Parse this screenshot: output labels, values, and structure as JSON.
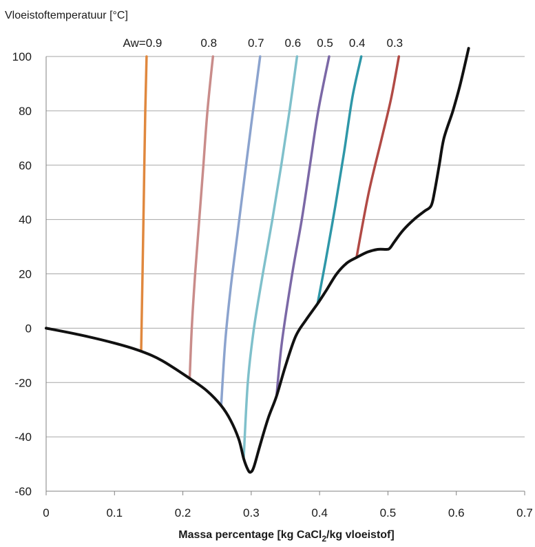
{
  "chart_data": {
    "type": "line",
    "title": "",
    "ylabel": "Vloeistoftemperatuur [°C]",
    "xlabel": {
      "prefix": "Massa percentage [kg CaCl",
      "subscript": "2",
      "suffix": "/kg vloeistof]"
    },
    "xlim": [
      0,
      0.7
    ],
    "ylim": [
      -60,
      100
    ],
    "xticks": [
      "0",
      "0.1",
      "0.2",
      "0.3",
      "0.4",
      "0.5",
      "0.6",
      "0.7"
    ],
    "yticks": [
      "100",
      "80",
      "60",
      "40",
      "20",
      "0",
      "-20",
      "-40",
      "-60"
    ],
    "xtick_values": [
      0,
      0.1,
      0.2,
      0.3,
      0.4,
      0.5,
      0.6,
      0.7
    ],
    "ytick_values": [
      100,
      80,
      60,
      40,
      20,
      0,
      -20,
      -40,
      -60
    ],
    "grid": "horizontal",
    "series": [
      {
        "name": "Aw=0.9",
        "color": "#E0883E",
        "points": [
          [
            0.139,
            -8.5
          ],
          [
            0.141,
            20
          ],
          [
            0.143,
            50
          ],
          [
            0.145,
            80
          ],
          [
            0.147,
            100
          ]
        ]
      },
      {
        "name": "0.8",
        "color": "#C98C8A",
        "points": [
          [
            0.21,
            -18.5
          ],
          [
            0.213,
            0
          ],
          [
            0.218,
            20
          ],
          [
            0.224,
            40
          ],
          [
            0.23,
            60
          ],
          [
            0.236,
            80
          ],
          [
            0.244,
            100
          ]
        ]
      },
      {
        "name": "0.7",
        "color": "#8BA3CE",
        "points": [
          [
            0.256,
            -28.5
          ],
          [
            0.262,
            -5
          ],
          [
            0.27,
            15
          ],
          [
            0.28,
            35
          ],
          [
            0.29,
            55
          ],
          [
            0.3,
            75
          ],
          [
            0.313,
            100
          ]
        ]
      },
      {
        "name": "0.6",
        "color": "#7FC0CB",
        "points": [
          [
            0.289,
            -48
          ],
          [
            0.295,
            -20
          ],
          [
            0.304,
            0
          ],
          [
            0.317,
            20
          ],
          [
            0.331,
            40
          ],
          [
            0.344,
            60
          ],
          [
            0.356,
            80
          ],
          [
            0.367,
            100
          ]
        ]
      },
      {
        "name": "0.5",
        "color": "#7B68A6",
        "points": [
          [
            0.337,
            -25
          ],
          [
            0.345,
            -5
          ],
          [
            0.36,
            20
          ],
          [
            0.374,
            40
          ],
          [
            0.386,
            60
          ],
          [
            0.398,
            80
          ],
          [
            0.414,
            100
          ]
        ]
      },
      {
        "name": "0.4",
        "color": "#2E97A8",
        "points": [
          [
            0.397,
            9
          ],
          [
            0.409,
            25
          ],
          [
            0.423,
            45
          ],
          [
            0.436,
            65
          ],
          [
            0.448,
            85
          ],
          [
            0.461,
            100
          ]
        ]
      },
      {
        "name": "0.3",
        "color": "#B14A45",
        "points": [
          [
            0.454,
            26
          ],
          [
            0.472,
            50
          ],
          [
            0.491,
            70
          ],
          [
            0.505,
            85
          ],
          [
            0.516,
            100
          ]
        ]
      },
      {
        "name": "",
        "color": "#111111",
        "points": [
          [
            0.0,
            0
          ],
          [
            0.05,
            -2.5
          ],
          [
            0.1,
            -5.5
          ],
          [
            0.139,
            -8.5
          ],
          [
            0.17,
            -12
          ],
          [
            0.21,
            -18.5
          ],
          [
            0.235,
            -23
          ],
          [
            0.256,
            -28.5
          ],
          [
            0.27,
            -34
          ],
          [
            0.282,
            -41
          ],
          [
            0.289,
            -48
          ],
          [
            0.295,
            -52
          ],
          [
            0.299,
            -53
          ],
          [
            0.304,
            -51
          ],
          [
            0.313,
            -43
          ],
          [
            0.325,
            -33
          ],
          [
            0.337,
            -25
          ],
          [
            0.35,
            -14
          ],
          [
            0.365,
            -3
          ],
          [
            0.38,
            3
          ],
          [
            0.397,
            9
          ],
          [
            0.41,
            14
          ],
          [
            0.425,
            20
          ],
          [
            0.44,
            24
          ],
          [
            0.454,
            26
          ],
          [
            0.47,
            28
          ],
          [
            0.485,
            29
          ],
          [
            0.498,
            29
          ],
          [
            0.503,
            29.5
          ],
          [
            0.51,
            32
          ],
          [
            0.522,
            36
          ],
          [
            0.538,
            40
          ],
          [
            0.553,
            43
          ],
          [
            0.563,
            45
          ],
          [
            0.568,
            50
          ],
          [
            0.575,
            60
          ],
          [
            0.582,
            70
          ],
          [
            0.595,
            80
          ],
          [
            0.606,
            90
          ],
          [
            0.618,
            103
          ]
        ]
      }
    ]
  }
}
